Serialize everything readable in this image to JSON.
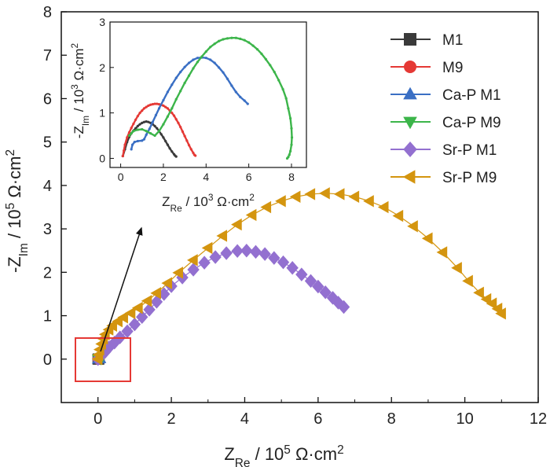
{
  "chart_data": [
    {
      "id": "main",
      "type": "scatter",
      "xlabel": {
        "main": "Z",
        "sub": "Re",
        "rest": " / 10",
        "sup": "5",
        "unit": " Ω·cm",
        "unitsup": "2"
      },
      "ylabel": {
        "pre": "-Z",
        "sub": "Im",
        "rest": " / 10",
        "sup": "5",
        "unit": " Ω·cm",
        "unitsup": "2"
      },
      "xlim": [
        -1,
        12
      ],
      "ylim": [
        -1,
        8
      ],
      "xticks": [
        0,
        2,
        4,
        6,
        8,
        10,
        12
      ],
      "yticks": [
        0,
        1,
        2,
        3,
        4,
        5,
        6,
        7,
        8
      ],
      "legend_position": "top-right",
      "series": [
        {
          "name": "M1",
          "color": "#3a3a3a",
          "marker": "square",
          "x": [
            0.0,
            0.01,
            0.02,
            0.025,
            0.02
          ],
          "y": [
            0.0,
            0.005,
            0.006,
            0.004,
            0.0
          ]
        },
        {
          "name": "M9",
          "color": "#e53935",
          "marker": "circle",
          "x": [
            0.0,
            0.01,
            0.02,
            0.03,
            0.035
          ],
          "y": [
            0.0,
            0.008,
            0.012,
            0.008,
            0.0
          ]
        },
        {
          "name": "Ca-P M1",
          "color": "#3a6fc4",
          "marker": "triangle-up",
          "x": [
            0.0,
            0.02,
            0.04,
            0.06,
            0.06
          ],
          "y": [
            0.0,
            0.02,
            0.02,
            0.013,
            0.01
          ]
        },
        {
          "name": "Ca-P M9",
          "color": "#3cb54a",
          "marker": "triangle-down",
          "x": [
            0.0,
            0.03,
            0.05,
            0.07,
            0.08
          ],
          "y": [
            0.0,
            0.02,
            0.026,
            0.02,
            0.0
          ]
        },
        {
          "name": "Sr-P M1",
          "color": "#9370d0",
          "marker": "diamond",
          "x": [
            0.0,
            0.05,
            0.1,
            0.2,
            0.3,
            0.45,
            0.6,
            0.8,
            1.0,
            1.2,
            1.4,
            1.6,
            1.8,
            2.0,
            2.3,
            2.6,
            2.9,
            3.2,
            3.5,
            3.8,
            4.05,
            4.3,
            4.55,
            4.8,
            5.05,
            5.3,
            5.55,
            5.8,
            6.0,
            6.2,
            6.4,
            6.55,
            6.7
          ],
          "y": [
            0.0,
            0.05,
            0.1,
            0.17,
            0.27,
            0.38,
            0.5,
            0.64,
            0.8,
            0.97,
            1.14,
            1.32,
            1.5,
            1.68,
            1.88,
            2.06,
            2.22,
            2.35,
            2.44,
            2.49,
            2.5,
            2.47,
            2.42,
            2.33,
            2.23,
            2.1,
            1.95,
            1.8,
            1.67,
            1.54,
            1.41,
            1.3,
            1.2
          ]
        },
        {
          "name": "Sr-P M9",
          "color": "#d4950f",
          "marker": "triangle-left",
          "x": [
            0.0,
            0.02,
            0.05,
            0.1,
            0.15,
            0.2,
            0.3,
            0.4,
            0.55,
            0.7,
            0.9,
            1.1,
            1.35,
            1.6,
            1.9,
            2.2,
            2.6,
            3.0,
            3.4,
            3.8,
            4.2,
            4.6,
            5.0,
            5.4,
            5.8,
            6.2,
            6.6,
            7.0,
            7.4,
            7.8,
            8.2,
            8.6,
            9.0,
            9.4,
            9.8,
            10.1,
            10.4,
            10.6,
            10.75,
            10.9,
            11.0
          ],
          "y": [
            0.0,
            0.1,
            0.22,
            0.35,
            0.47,
            0.57,
            0.68,
            0.77,
            0.87,
            0.96,
            1.06,
            1.18,
            1.34,
            1.52,
            1.75,
            1.99,
            2.28,
            2.56,
            2.84,
            3.1,
            3.32,
            3.5,
            3.64,
            3.74,
            3.8,
            3.82,
            3.8,
            3.74,
            3.64,
            3.5,
            3.3,
            3.06,
            2.78,
            2.46,
            2.1,
            1.8,
            1.53,
            1.38,
            1.28,
            1.16,
            1.05
          ]
        }
      ]
    },
    {
      "id": "inset",
      "type": "line",
      "xlabel": {
        "main": "Z",
        "sub": "Re",
        "rest": " / 10",
        "sup": "3",
        "unit": " Ω·cm",
        "unitsup": "2"
      },
      "ylabel": {
        "pre": "-Z",
        "sub": "Im",
        "rest": " / 10",
        "sup": "3",
        "unit": " Ω·cm",
        "unitsup": "2"
      },
      "xlim": [
        -0.5,
        8.7
      ],
      "ylim": [
        -0.2,
        3.0
      ],
      "xticks": [
        0,
        2,
        4,
        6,
        8
      ],
      "yticks": [
        0,
        1,
        2,
        3
      ],
      "series": [
        {
          "name": "M1",
          "color": "#3a3a3a",
          "x": [
            0.1,
            0.2,
            0.3,
            0.4,
            0.5,
            0.6,
            0.7,
            0.8,
            0.9,
            1.0,
            1.1,
            1.2,
            1.3,
            1.4,
            1.5,
            1.6,
            1.7,
            1.8,
            1.9,
            2.0,
            2.1,
            2.2,
            2.3,
            2.4,
            2.5,
            2.55,
            2.6
          ],
          "y": [
            0.05,
            0.2,
            0.36,
            0.47,
            0.55,
            0.61,
            0.66,
            0.71,
            0.75,
            0.78,
            0.8,
            0.81,
            0.8,
            0.78,
            0.75,
            0.71,
            0.66,
            0.6,
            0.53,
            0.46,
            0.38,
            0.3,
            0.22,
            0.15,
            0.09,
            0.06,
            0.04
          ]
        },
        {
          "name": "M9",
          "color": "#e53935",
          "x": [
            0.1,
            0.15,
            0.2,
            0.3,
            0.4,
            0.5,
            0.6,
            0.7,
            0.8,
            0.9,
            1.0,
            1.1,
            1.2,
            1.3,
            1.4,
            1.5,
            1.6,
            1.7,
            1.8,
            1.9,
            2.0,
            2.1,
            2.2,
            2.3,
            2.4,
            2.5,
            2.6,
            2.7,
            2.8,
            2.9,
            3.0,
            3.1,
            3.2,
            3.3,
            3.4,
            3.45,
            3.5
          ],
          "y": [
            0.05,
            0.17,
            0.3,
            0.46,
            0.57,
            0.67,
            0.76,
            0.85,
            0.93,
            1.0,
            1.05,
            1.1,
            1.13,
            1.16,
            1.18,
            1.19,
            1.2,
            1.2,
            1.19,
            1.18,
            1.16,
            1.13,
            1.1,
            1.05,
            1.0,
            0.94,
            0.86,
            0.78,
            0.69,
            0.59,
            0.49,
            0.39,
            0.29,
            0.2,
            0.12,
            0.08,
            0.06
          ]
        },
        {
          "name": "Ca-P M1",
          "color": "#3a6fc4",
          "x": [
            0.5,
            0.55,
            0.65,
            0.8,
            1.0,
            1.1,
            1.2,
            1.35,
            1.5,
            1.65,
            1.8,
            2.0,
            2.2,
            2.4,
            2.6,
            2.8,
            3.0,
            3.2,
            3.4,
            3.6,
            3.8,
            4.0,
            4.2,
            4.4,
            4.6,
            4.8,
            5.0,
            5.2,
            5.4,
            5.6,
            5.8,
            5.95
          ],
          "y": [
            0.2,
            0.3,
            0.36,
            0.38,
            0.39,
            0.42,
            0.52,
            0.65,
            0.8,
            0.95,
            1.1,
            1.28,
            1.46,
            1.62,
            1.77,
            1.9,
            2.01,
            2.1,
            2.17,
            2.21,
            2.22,
            2.21,
            2.17,
            2.1,
            2.0,
            1.89,
            1.75,
            1.6,
            1.46,
            1.35,
            1.27,
            1.2
          ]
        },
        {
          "name": "Ca-P M9",
          "color": "#3cb54a",
          "x": [
            0.4,
            0.5,
            0.6,
            0.8,
            1.0,
            1.2,
            1.4,
            1.6,
            1.8,
            2.0,
            2.2,
            2.4,
            2.6,
            2.8,
            3.0,
            3.2,
            3.4,
            3.6,
            3.8,
            4.0,
            4.2,
            4.4,
            4.6,
            4.8,
            5.0,
            5.2,
            5.4,
            5.6,
            5.8,
            6.0,
            6.2,
            6.4,
            6.6,
            6.8,
            7.0,
            7.2,
            7.4,
            7.6,
            7.75,
            7.85,
            7.95,
            8.0,
            8.02,
            8.0,
            7.95,
            7.9,
            7.85,
            7.8
          ],
          "y": [
            0.5,
            0.55,
            0.6,
            0.63,
            0.64,
            0.6,
            0.55,
            0.5,
            0.6,
            0.75,
            0.92,
            1.1,
            1.3,
            1.48,
            1.66,
            1.82,
            1.98,
            2.12,
            2.24,
            2.35,
            2.45,
            2.52,
            2.58,
            2.62,
            2.64,
            2.65,
            2.65,
            2.63,
            2.6,
            2.55,
            2.48,
            2.4,
            2.3,
            2.18,
            2.05,
            1.9,
            1.72,
            1.52,
            1.32,
            1.1,
            0.88,
            0.66,
            0.46,
            0.3,
            0.16,
            0.08,
            0.03,
            0.0
          ]
        }
      ]
    }
  ]
}
